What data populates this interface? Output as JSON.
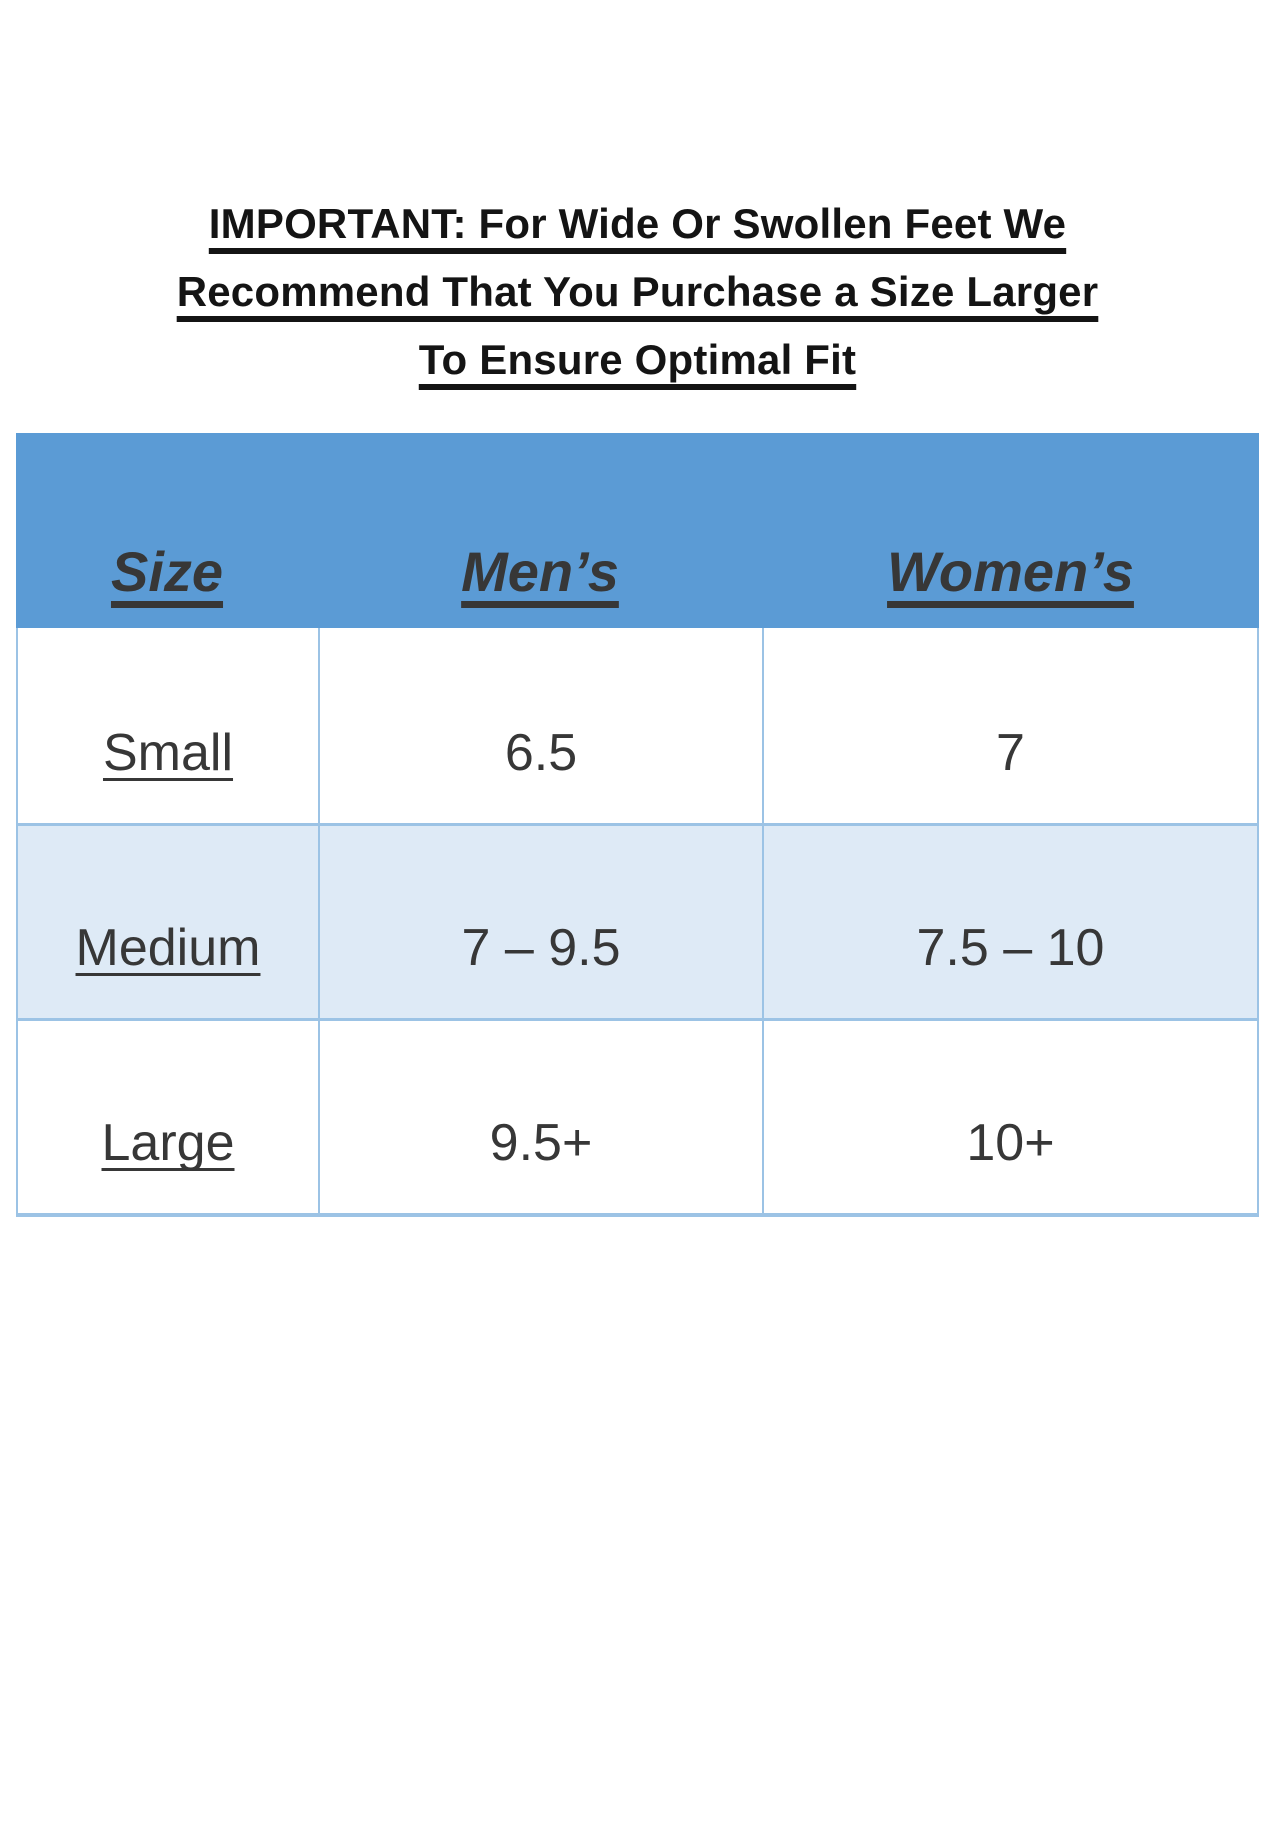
{
  "title": {
    "lines": [
      "IMPORTANT: For Wide Or Swollen Feet We",
      "Recommend That You Purchase a Size Larger",
      "To Ensure Optimal Fit"
    ]
  },
  "size_chart": {
    "columns": {
      "size": "Size",
      "mens": "Men’s",
      "womens": "Women’s"
    },
    "rows": [
      {
        "size": "Small",
        "mens": "6.5",
        "womens": "7"
      },
      {
        "size": "Medium",
        "mens": "7 – 9.5",
        "womens": "7.5 – 10"
      },
      {
        "size": "Large",
        "mens": "9.5+",
        "womens": "10+"
      }
    ],
    "colors": {
      "header_fill": "#5b9bd5",
      "band_fill": "#deeaf6",
      "border": "#9cc3e5",
      "text": "#373737",
      "title_text": "#141414"
    }
  }
}
